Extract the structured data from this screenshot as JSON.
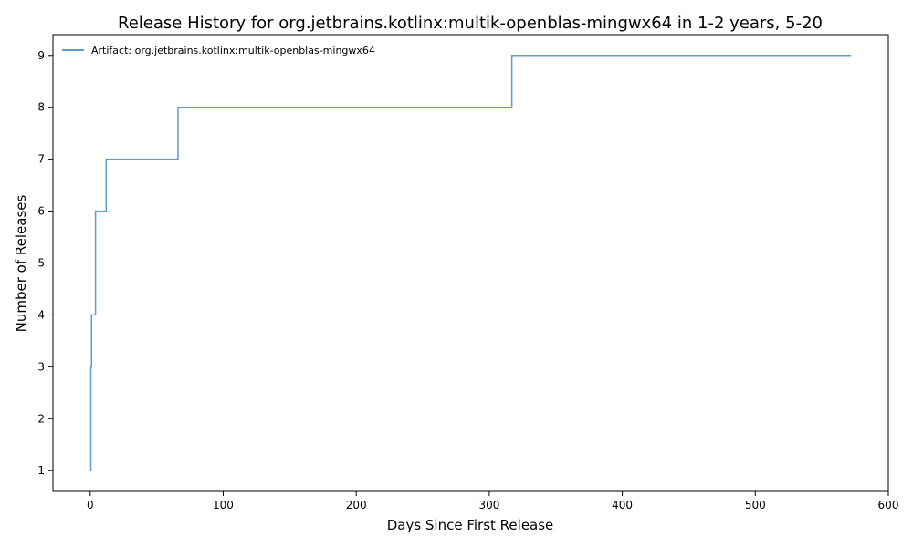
{
  "chart_data": {
    "type": "line",
    "title": "Release History for org.jetbrains.kotlinx:multik-openblas-mingwx64 in 1-2 years, 5-20",
    "xlabel": "Days Since First Release",
    "ylabel": "Number of Releases",
    "xlim": [
      -28,
      600
    ],
    "ylim": [
      0.6,
      9.4
    ],
    "x_ticks": [
      0,
      100,
      200,
      300,
      400,
      500,
      600
    ],
    "y_ticks": [
      1,
      2,
      3,
      4,
      5,
      6,
      7,
      8,
      9
    ],
    "grid": false,
    "legend_position": "top-left",
    "series": [
      {
        "name": "Artifact: org.jetbrains.kotlinx:multik-openblas-mingwx64",
        "color": "#5b9bd5",
        "step": "post",
        "x": [
          0,
          0.5,
          1,
          4,
          12,
          66,
          317,
          572
        ],
        "y": [
          1,
          3,
          4,
          6,
          7,
          8,
          9,
          9
        ]
      }
    ]
  }
}
